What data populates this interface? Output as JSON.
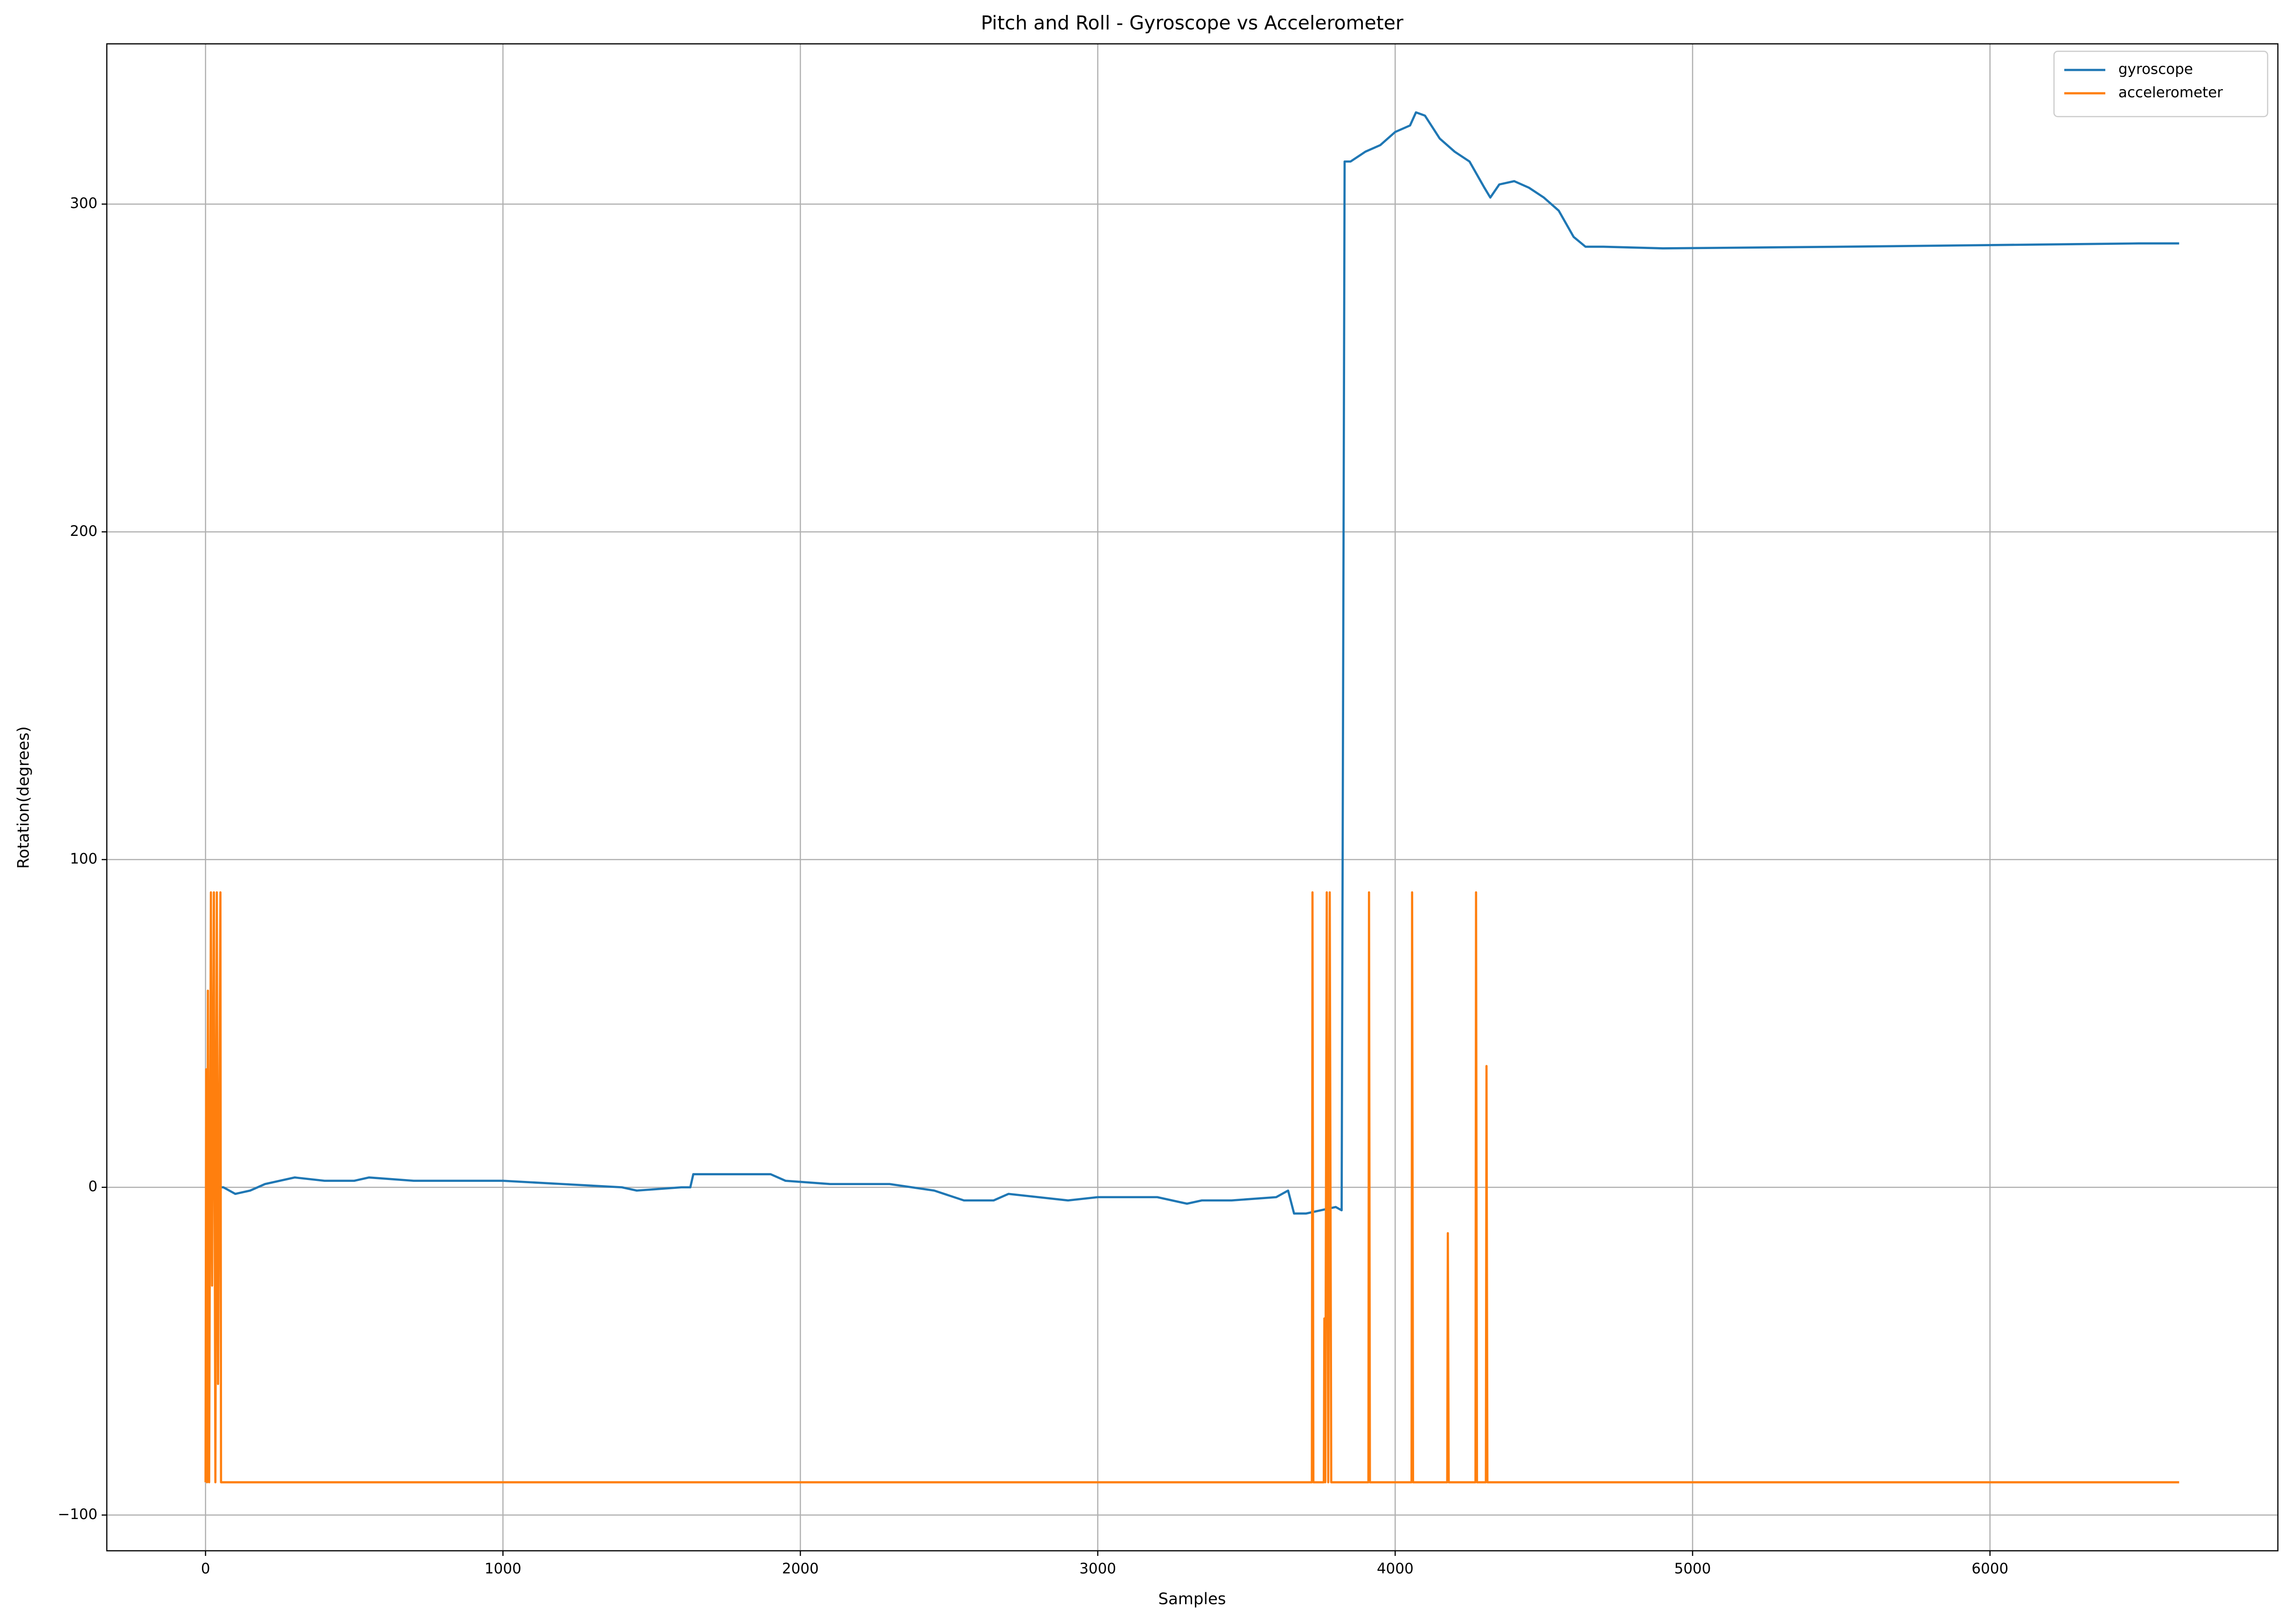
{
  "chart_data": {
    "type": "line",
    "title": "Pitch and Roll - Gyroscope vs Accelerometer",
    "x_label": "Samples",
    "y_label": "Rotation(degrees)",
    "xlim": [
      -332,
      6968
    ],
    "ylim": [
      -110.9,
      348.9
    ],
    "xticks": [
      0,
      1000,
      2000,
      3000,
      4000,
      5000,
      6000
    ],
    "yticks": [
      {
        "value": -100,
        "label": "−100"
      },
      0,
      100,
      200,
      300
    ],
    "grid": true,
    "legend": "upper right",
    "series": [
      {
        "name": "gyroscope",
        "color": "#1f77b4",
        "x": [
          0,
          60,
          100,
          150,
          200,
          300,
          400,
          500,
          550,
          700,
          900,
          1000,
          1200,
          1400,
          1450,
          1600,
          1630,
          1640,
          1800,
          1900,
          1950,
          2100,
          2300,
          2450,
          2550,
          2650,
          2700,
          2800,
          2900,
          3000,
          3100,
          3200,
          3300,
          3350,
          3450,
          3600,
          3640,
          3660,
          3700,
          3750,
          3800,
          3820,
          3830,
          3850,
          3900,
          3950,
          4000,
          4050,
          4070,
          4100,
          4150,
          4200,
          4250,
          4300,
          4320,
          4350,
          4400,
          4450,
          4500,
          4550,
          4600,
          4640,
          4700,
          4900,
          5500,
          6000,
          6500,
          6636
        ],
        "values": [
          0,
          0,
          -2,
          -1,
          1,
          3,
          2,
          2,
          3,
          2,
          2,
          2,
          1,
          0,
          -1,
          0,
          0,
          4,
          4,
          4,
          2,
          1,
          1,
          -1,
          -4,
          -4,
          -2,
          -3,
          -4,
          -3,
          -3,
          -3,
          -5,
          -4,
          -4,
          -3,
          -1,
          -8,
          -8,
          -7,
          -6,
          -7,
          313,
          313,
          316,
          318,
          322,
          324,
          328,
          327,
          320,
          316,
          313,
          305,
          302,
          306,
          307,
          305,
          302,
          298,
          290,
          287,
          287,
          286.5,
          287,
          287.5,
          288,
          288
        ]
      },
      {
        "name": "accelerometer",
        "color": "#ff7f0e",
        "x": [
          0,
          2,
          5,
          8,
          12,
          18,
          22,
          28,
          33,
          38,
          42,
          50,
          52,
          3720,
          3722,
          3725,
          3760,
          3762,
          3765,
          3770,
          3775,
          3780,
          3785,
          3910,
          3912,
          3915,
          4055,
          4057,
          4060,
          4175,
          4177,
          4180,
          4270,
          4272,
          4275,
          4305,
          4307,
          4310,
          6636
        ],
        "values": [
          -90,
          36,
          -90,
          60,
          -90,
          90,
          -30,
          90,
          -90,
          90,
          -60,
          90,
          -90,
          -90,
          90,
          -90,
          -90,
          -40,
          -90,
          90,
          -90,
          90,
          -90,
          -90,
          90,
          -90,
          -90,
          90,
          -90,
          -90,
          -14,
          -90,
          -90,
          90,
          -90,
          -90,
          37,
          -90,
          -90
        ]
      }
    ]
  }
}
